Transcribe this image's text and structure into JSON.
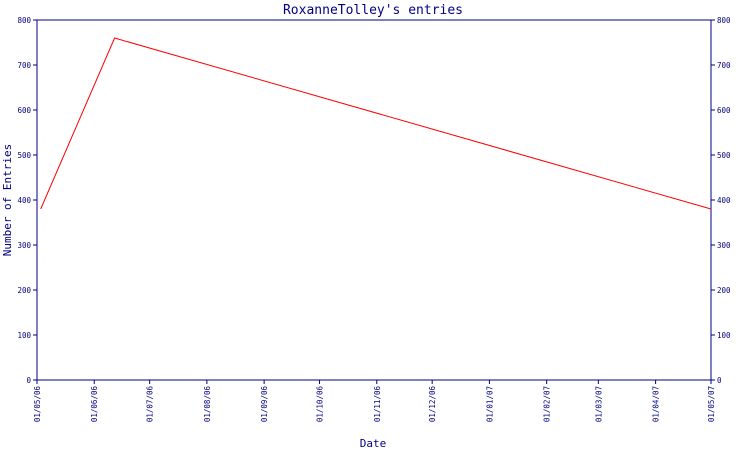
{
  "chart_data": {
    "type": "line",
    "title": "RoxanneTolley's entries",
    "xlabel": "Date",
    "ylabel": "Number of Entries",
    "ylim": [
      0,
      800
    ],
    "y_ticks": [
      0,
      100,
      200,
      300,
      400,
      500,
      600,
      700,
      800
    ],
    "y_ticks_right": true,
    "grid": false,
    "x_tick_labels": [
      "01/05/06",
      "01/06/06",
      "01/07/06",
      "01/08/06",
      "01/09/06",
      "01/10/06",
      "01/11/06",
      "01/12/06",
      "01/01/07",
      "01/02/07",
      "01/03/07",
      "01/04/07",
      "01/05/07"
    ],
    "series": [
      {
        "color": "#ff0000",
        "points": [
          {
            "x": "2006-05-03",
            "y": 380
          },
          {
            "x": "2006-06-12",
            "y": 760
          },
          {
            "x": "2007-05-01",
            "y": 380
          }
        ]
      }
    ],
    "colors": {
      "axis": "#000080",
      "text": "#000080",
      "line": "#ff0000",
      "background": "#ffffff"
    }
  }
}
